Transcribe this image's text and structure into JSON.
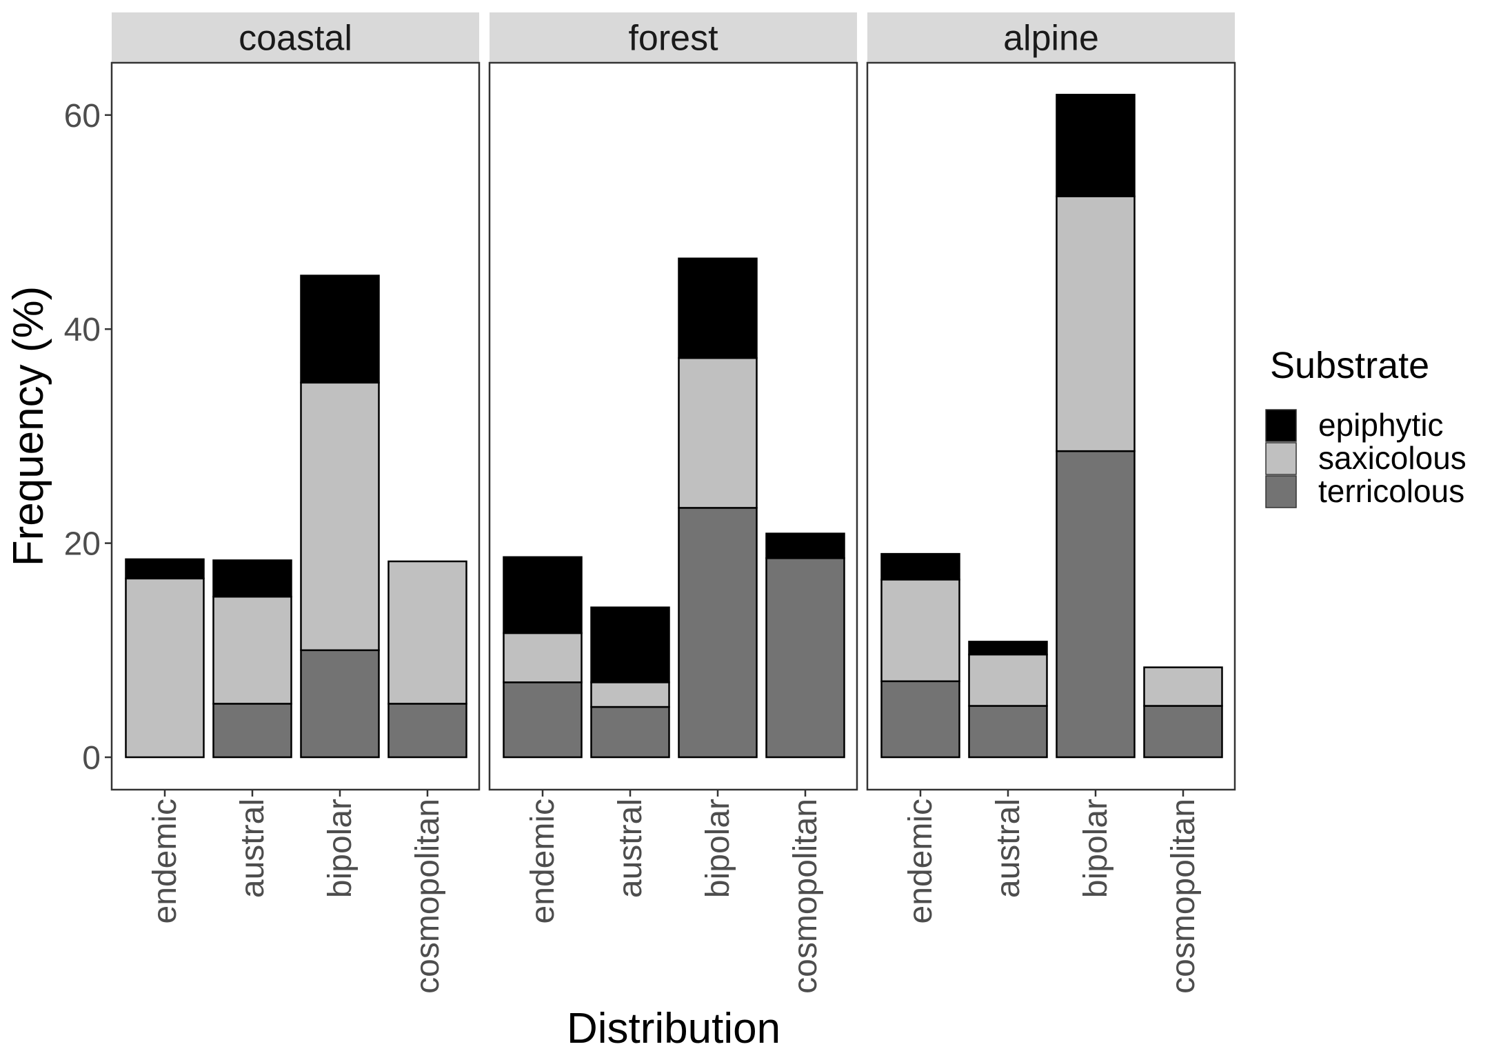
{
  "chart_data": {
    "type": "bar",
    "stacked": true,
    "ylabel": "Frequency (%)",
    "xlabel": "Distribution",
    "ylim": [
      0,
      65
    ],
    "yticks": [
      0,
      20,
      40,
      60
    ],
    "categories": [
      "endemic",
      "austral",
      "bipolar",
      "cosmopolitan"
    ],
    "legend": {
      "title": "Substrate",
      "position": "right",
      "entries": [
        {
          "name": "epiphytic",
          "color": "#000000"
        },
        {
          "name": "saxicolous",
          "color": "#c0c0c0"
        },
        {
          "name": "terricolous",
          "color": "#737373"
        }
      ]
    },
    "facets": [
      {
        "label": "coastal",
        "series": [
          {
            "name": "terricolous",
            "values": [
              0,
              5,
              10,
              5
            ]
          },
          {
            "name": "saxicolous",
            "values": [
              16.7,
              10,
              25,
              13.3
            ]
          },
          {
            "name": "epiphytic",
            "values": [
              1.8,
              3.4,
              10,
              0
            ]
          }
        ]
      },
      {
        "label": "forest",
        "series": [
          {
            "name": "terricolous",
            "values": [
              7,
              4.7,
              23.3,
              18.6
            ]
          },
          {
            "name": "saxicolous",
            "values": [
              4.6,
              2.3,
              14,
              0
            ]
          },
          {
            "name": "epiphytic",
            "values": [
              7.1,
              7,
              9.3,
              2.3
            ]
          }
        ]
      },
      {
        "label": "alpine",
        "series": [
          {
            "name": "terricolous",
            "values": [
              7.1,
              4.8,
              28.6,
              4.8
            ]
          },
          {
            "name": "saxicolous",
            "values": [
              9.5,
              4.8,
              23.8,
              3.6
            ]
          },
          {
            "name": "epiphytic",
            "values": [
              2.4,
              1.2,
              9.5,
              0
            ]
          }
        ]
      }
    ]
  }
}
